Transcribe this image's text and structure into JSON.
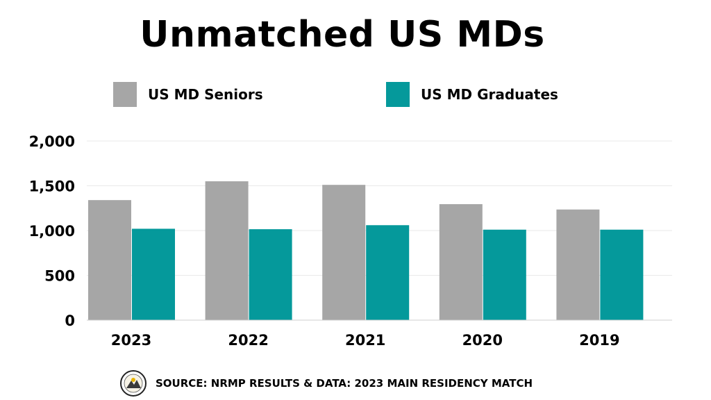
{
  "title": "Unmatched US MDs",
  "source": "SOURCE: NRMP RESULTS & DATA: 2023 MAIN RESIDENCY MATCH",
  "colors": {
    "seniors": "#a6a6a6",
    "graduates": "#05999b",
    "grid": "#e9e9e9"
  },
  "chart_data": {
    "type": "bar",
    "title": "Unmatched US MDs",
    "categories": [
      "2023",
      "2022",
      "2021",
      "2020",
      "2019"
    ],
    "series": [
      {
        "name": "US MD Seniors",
        "values": [
          1340,
          1550,
          1510,
          1295,
          1235
        ]
      },
      {
        "name": "US MD Graduates",
        "values": [
          1020,
          1015,
          1060,
          1010,
          1010
        ]
      }
    ],
    "yticks": [
      "0",
      "500",
      "1,000",
      "1,500",
      "2,000"
    ],
    "ylim": [
      0,
      2000
    ],
    "grid": true,
    "legend": "top"
  }
}
